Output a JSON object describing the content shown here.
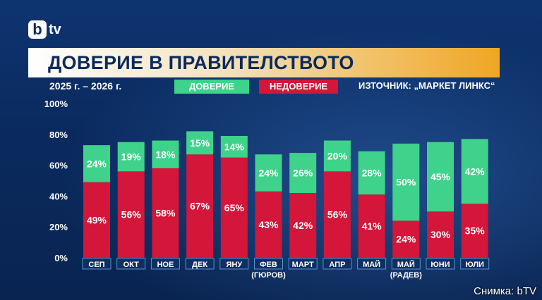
{
  "logo": {
    "letter": "b",
    "text": "tv"
  },
  "title": "ДОВЕРИЕ В ПРАВИТЕЛСТВОТО",
  "period": "2025 г. – 2026 г.",
  "source": "ИЗТОЧНИК: „МАРКЕТ ЛИНКС“",
  "credit": "Снимка: bTV",
  "colors": {
    "trust": "#3fd28a",
    "distrust": "#d3163a",
    "background": "#0b2a5c",
    "title_accent": "#f0a623"
  },
  "chart_data": {
    "type": "bar",
    "stacked": true,
    "categories": [
      "СЕП",
      "ОКТ",
      "НОЕ",
      "ДЕК",
      "ЯНУ",
      "ФЕВ",
      "МАРТ",
      "АПР",
      "МАЙ",
      "МАЙ",
      "ЮНИ",
      "ЮЛИ"
    ],
    "sublabels": [
      "",
      "",
      "",
      "",
      "",
      "(ГЮРОВ)",
      "",
      "",
      "",
      "(РАДЕВ)",
      "",
      ""
    ],
    "series": [
      {
        "name": "НЕДОВЕРИЕ",
        "values": [
          49,
          56,
          58,
          67,
          65,
          43,
          42,
          56,
          41,
          24,
          30,
          35
        ]
      },
      {
        "name": "ДОВЕРИЕ",
        "values": [
          24,
          19,
          18,
          15,
          14,
          24,
          26,
          20,
          28,
          50,
          45,
          42
        ]
      }
    ],
    "ylim": [
      0,
      100
    ],
    "yticks": [
      0,
      20,
      40,
      60,
      80,
      100
    ],
    "ytick_labels": [
      "0%",
      "20%",
      "40%",
      "60%",
      "80%",
      "100%"
    ],
    "value_suffix": "%",
    "grid": false,
    "legend": "top"
  }
}
